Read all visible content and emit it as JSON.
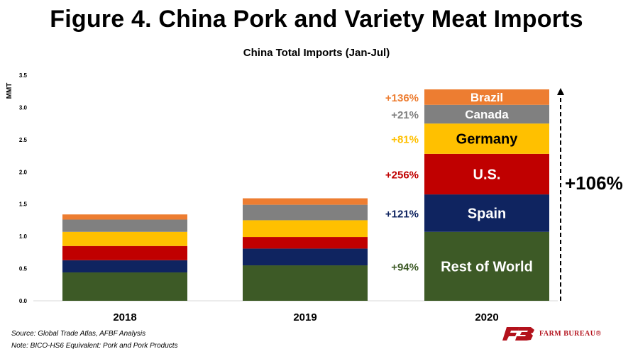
{
  "title": "Figure 4. China Pork and Variety Meat Imports",
  "subtitle": "China Total Imports (Jan-Jul)",
  "source_line": "Source:  Global Trade Atlas, AFBF Analysis",
  "note_line": "Note: BICO-HS6 Equivalent: Pork and Pork Products",
  "logo_text": "FARM BUREAU®",
  "total_change_label": "+106%",
  "chart_data": {
    "type": "bar",
    "stacked": true,
    "title": "China Total Imports (Jan-Jul)",
    "xlabel": "",
    "ylabel": "MMT",
    "ylim": [
      0,
      3.5
    ],
    "yticks": [
      "0.0",
      "0.5",
      "1.0",
      "1.5",
      "2.0",
      "2.5",
      "3.0",
      "3.5"
    ],
    "grid": false,
    "legend": "none",
    "categories": [
      "2018",
      "2019",
      "2020"
    ],
    "series": [
      {
        "name": "Rest of World",
        "color": "#3d5a26",
        "values": [
          0.44,
          0.55,
          1.07
        ],
        "change": "+94%"
      },
      {
        "name": "Spain",
        "color": "#0f2460",
        "values": [
          0.19,
          0.26,
          0.58
        ],
        "change": "+121%"
      },
      {
        "name": "U.S.",
        "color": "#c00000",
        "values": [
          0.22,
          0.18,
          0.63
        ],
        "change": "+256%"
      },
      {
        "name": "Germany",
        "color": "#ffc000",
        "values": [
          0.22,
          0.26,
          0.47
        ],
        "change": "+81%"
      },
      {
        "name": "Canada",
        "color": "#808080",
        "values": [
          0.19,
          0.24,
          0.29
        ],
        "change": "+21%"
      },
      {
        "name": "Brazil",
        "color": "#ed7d31",
        "values": [
          0.08,
          0.1,
          0.24
        ],
        "change": "+136%"
      }
    ]
  }
}
